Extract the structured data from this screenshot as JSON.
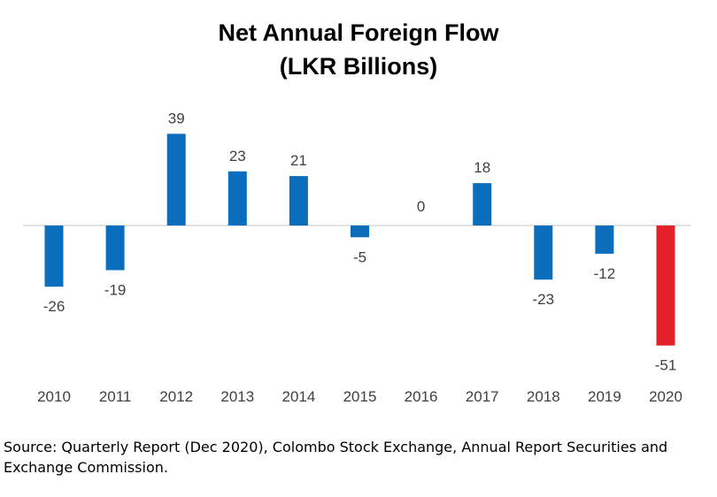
{
  "title_line1": "Net Annual Foreign Flow",
  "title_line2": "(LKR Billions)",
  "source": "Source: Quarterly Report (Dec 2020), Colombo Stock Exchange, Annual Report Securities and Exchange Commission.",
  "chart_data": {
    "type": "bar",
    "title": "Net Annual Foreign Flow (LKR Billions)",
    "categories": [
      "2010",
      "2011",
      "2012",
      "2013",
      "2014",
      "2015",
      "2016",
      "2017",
      "2018",
      "2019",
      "2020"
    ],
    "values": [
      -26,
      -19,
      39,
      23,
      21,
      -5,
      0,
      18,
      -23,
      -12,
      -51
    ],
    "xlabel": "",
    "ylabel": "",
    "ylim": [
      -51,
      39
    ],
    "grid": false,
    "legend": "none",
    "colors": {
      "default": "#0A6EBD",
      "highlight": "#E3212B",
      "axis": "#D9D9D9",
      "text": "#404040"
    },
    "highlight_categories": [
      "2020"
    ]
  }
}
